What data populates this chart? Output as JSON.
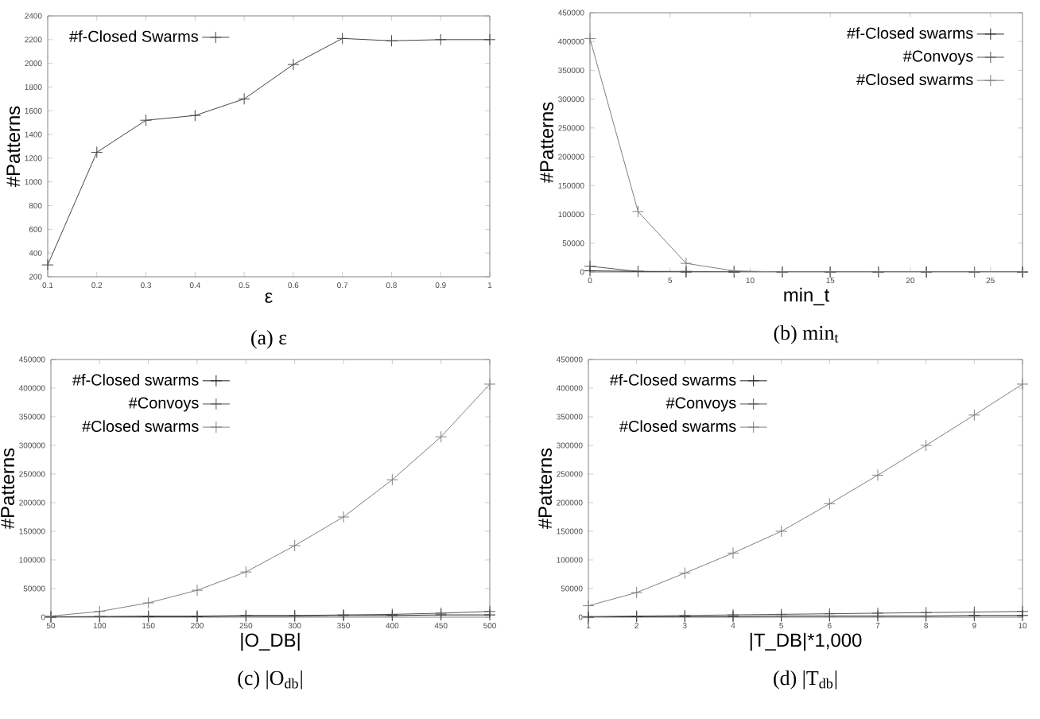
{
  "chart_data": [
    {
      "type": "line",
      "xlabel": "ε",
      "ylabel": "#Patterns",
      "annotations": [
        "(a) ε"
      ],
      "legend": "top left",
      "x": [
        0.1,
        0.2,
        0.3,
        0.4,
        0.5,
        0.6,
        0.7,
        0.8,
        0.9,
        1
      ],
      "xlim": [
        0.1,
        1
      ],
      "xticks": [
        0.1,
        0.2,
        0.3,
        0.4,
        0.5,
        0.6,
        0.7,
        0.8,
        0.9,
        1
      ],
      "ylim": [
        200,
        2400
      ],
      "yticks": [
        200,
        400,
        600,
        800,
        1000,
        1200,
        1400,
        1600,
        1800,
        2000,
        2200,
        2400
      ],
      "series": [
        {
          "name": "#f-Closed Swarms",
          "color": "#444444",
          "marker": "cross",
          "values": [
            300,
            1250,
            1520,
            1560,
            1700,
            1990,
            2210,
            2190,
            2200,
            2200
          ]
        }
      ]
    },
    {
      "type": "line",
      "xlabel": "min_t",
      "ylabel": "#Patterns",
      "annotations": [
        "(b) min$_{t}$"
      ],
      "legend": "top right",
      "x": [
        0,
        3,
        6,
        9,
        12,
        15,
        18,
        21,
        24,
        27
      ],
      "xlim": [
        0,
        27
      ],
      "xticks": [
        0,
        5,
        10,
        15,
        20,
        25
      ],
      "ylim": [
        0,
        450000
      ],
      "yticks": [
        0,
        50000,
        100000,
        150000,
        200000,
        250000,
        300000,
        350000,
        400000,
        450000
      ],
      "series": [
        {
          "name": "#f-Closed swarms",
          "color": "#222222",
          "marker": "cross",
          "values": [
            2000,
            1000,
            0,
            0,
            0,
            0,
            0,
            0,
            0,
            0
          ]
        },
        {
          "name": "#Convoys",
          "color": "#555555",
          "marker": "cross",
          "values": [
            10000,
            1000,
            1000,
            0,
            0,
            0,
            0,
            0,
            0,
            0
          ]
        },
        {
          "name": "#Closed swarms",
          "color": "#808080",
          "marker": "cross",
          "values": [
            405000,
            105000,
            15000,
            2000,
            0,
            0,
            0,
            0,
            0,
            0
          ]
        }
      ]
    },
    {
      "type": "line",
      "xlabel": "|O_DB|",
      "ylabel": "#Patterns",
      "annotations": [
        "(c) |O$_{db}$|"
      ],
      "legend": "top left",
      "x": [
        50,
        100,
        150,
        200,
        250,
        300,
        350,
        400,
        450,
        500
      ],
      "xlim": [
        50,
        500
      ],
      "xticks": [
        50,
        100,
        150,
        200,
        250,
        300,
        350,
        400,
        450,
        500
      ],
      "ylim": [
        0,
        450000
      ],
      "yticks": [
        0,
        50000,
        100000,
        150000,
        200000,
        250000,
        300000,
        350000,
        400000,
        450000
      ],
      "series": [
        {
          "name": "#f-Closed swarms",
          "color": "#222222",
          "marker": "cross",
          "values": [
            0,
            1000,
            1000,
            1000,
            2000,
            2000,
            3000,
            3000,
            4000,
            4000
          ]
        },
        {
          "name": "#Convoys",
          "color": "#555555",
          "marker": "cross",
          "values": [
            1000,
            1000,
            2000,
            2000,
            3000,
            3000,
            4000,
            5000,
            7000,
            10000
          ]
        },
        {
          "name": "#Closed swarms",
          "color": "#808080",
          "marker": "cross",
          "values": [
            2000,
            10000,
            25000,
            47000,
            79000,
            125000,
            175000,
            240000,
            315000,
            407000
          ]
        }
      ]
    },
    {
      "type": "line",
      "xlabel": "|T_DB|*1,000",
      "ylabel": "#Patterns",
      "annotations": [
        "(d) |T$_{db}$|"
      ],
      "legend": "top left",
      "x": [
        1,
        2,
        3,
        4,
        5,
        6,
        7,
        8,
        9,
        10
      ],
      "xlim": [
        1,
        10
      ],
      "xticks": [
        1,
        2,
        3,
        4,
        5,
        6,
        7,
        8,
        9,
        10
      ],
      "ylim": [
        0,
        450000
      ],
      "yticks": [
        0,
        50000,
        100000,
        150000,
        200000,
        250000,
        300000,
        350000,
        400000,
        450000
      ],
      "series": [
        {
          "name": "#f-Closed swarms",
          "color": "#222222",
          "marker": "cross",
          "values": [
            0,
            1000,
            1000,
            1000,
            2000,
            2000,
            2000,
            2000,
            3000,
            3000
          ]
        },
        {
          "name": "#Convoys",
          "color": "#555555",
          "marker": "cross",
          "values": [
            1000,
            2000,
            3000,
            4000,
            5000,
            6000,
            7000,
            8000,
            9000,
            10000
          ]
        },
        {
          "name": "#Closed swarms",
          "color": "#808080",
          "marker": "cross",
          "values": [
            20000,
            43000,
            77000,
            112000,
            150000,
            198000,
            248000,
            300000,
            353000,
            407000
          ]
        }
      ]
    }
  ]
}
